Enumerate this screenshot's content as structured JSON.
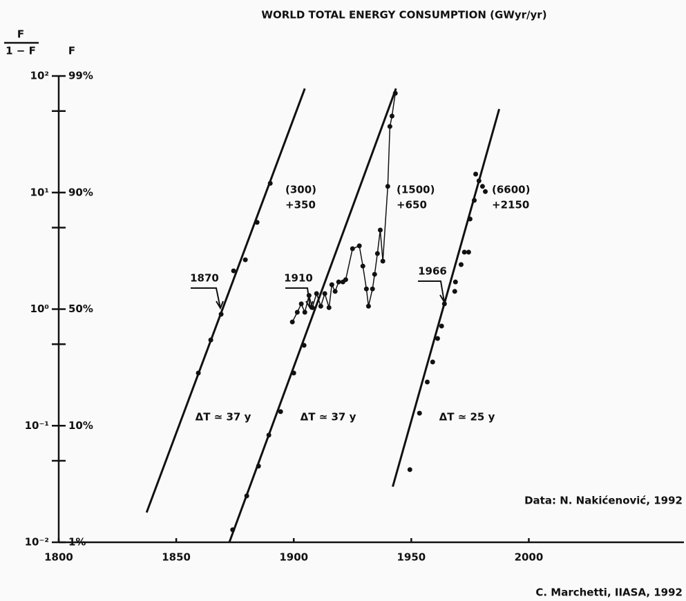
{
  "chart_data": {
    "type": "line",
    "title": "WORLD TOTAL ENERGY CONSUMPTION (GWyr/yr)",
    "ylabel": {
      "numerator": "F",
      "denominator": "1 − F"
    },
    "f_label": "F",
    "log_y": true,
    "xlim": [
      1800,
      2066
    ],
    "ylim": [
      0.01,
      100
    ],
    "xticks": [
      1800,
      1850,
      1900,
      1950,
      2000
    ],
    "yticks": [
      {
        "value": 100,
        "label": "10²"
      },
      {
        "value": 10,
        "label": "10¹"
      },
      {
        "value": 1,
        "label": "10⁰"
      },
      {
        "value": 0.1,
        "label": "10⁻¹"
      },
      {
        "value": 0.01,
        "label": "10⁻²"
      }
    ],
    "f_tick_labels": [
      "99%",
      "90%",
      "50%",
      "10%",
      "1%"
    ],
    "yticks_minor": [
      50,
      5,
      0.5,
      0.05
    ],
    "color": "#111111",
    "series": [
      {
        "style": "fit",
        "x": [
          1837.4,
          1904.7
        ],
        "values": [
          0.018,
          78
        ]
      },
      {
        "style": "fit",
        "x": [
          1872.6,
          1943.5
        ],
        "values": [
          0.01,
          78
        ]
      },
      {
        "style": "fit",
        "x": [
          1942.1,
          1987.4
        ],
        "values": [
          0.03,
          52
        ]
      },
      {
        "style": "points",
        "x": [
          1859.4,
          1864.7,
          1869.1,
          1874.4,
          1879.4,
          1884.4,
          1890.0
        ],
        "values": [
          0.283,
          0.544,
          0.904,
          2.13,
          2.65,
          5.55,
          12.0
        ]
      },
      {
        "style": "points",
        "x": [
          1874.0,
          1880.0,
          1885.0,
          1889.4,
          1894.4,
          1900.0,
          1904.4
        ],
        "values": [
          0.0128,
          0.025,
          0.045,
          0.083,
          0.132,
          0.283,
          0.489
        ]
      },
      {
        "style": "connected",
        "x": [
          1899.4,
          1901.5,
          1903.2,
          1904.7,
          1906.5,
          1907.9,
          1909.7,
          1911.5,
          1913.2,
          1915.0,
          1916.2,
          1917.6,
          1919.1,
          1920.9,
          1922.1,
          1925.0,
          1927.9,
          1929.4,
          1930.9,
          1931.8,
          1933.5,
          1934.4,
          1935.6,
          1936.8,
          1937.9,
          1940.0,
          1940.9,
          1941.8,
          1943.2
        ],
        "values": [
          0.776,
          0.94,
          1.11,
          0.94,
          1.31,
          1.03,
          1.36,
          1.06,
          1.36,
          1.03,
          1.62,
          1.42,
          1.71,
          1.71,
          1.79,
          3.3,
          3.49,
          2.34,
          1.49,
          1.06,
          1.49,
          1.99,
          3.0,
          4.77,
          2.58,
          11.3,
          36.9,
          45.3,
          71.1
        ]
      },
      {
        "style": "points",
        "x": [
          1949.4,
          1953.5,
          1956.8,
          1959.1,
          1961.2,
          1962.9,
          1964.1,
          1968.5,
          1968.8,
          1971.2,
          1972.6,
          1974.4,
          1975.0,
          1976.8,
          1977.4,
          1978.8,
          1980.3,
          1981.5
        ],
        "values": [
          0.042,
          0.128,
          0.237,
          0.352,
          0.56,
          0.716,
          1.11,
          1.42,
          1.71,
          2.41,
          3.08,
          3.08,
          5.93,
          8.57,
          14.4,
          12.6,
          11.3,
          10.2
        ]
      }
    ],
    "annotations": [
      "(300)",
      "+350",
      "(1500)",
      "+650",
      "(6600)",
      "+2150",
      "1870",
      "1910",
      "1966",
      "ΔT ≃ 37 y",
      "ΔT ≃ 37 y",
      "ΔT ≃ 25 y",
      "Data: N. Nakićenović, 1992",
      "C. Marchetti, IIASA, 1992"
    ]
  }
}
